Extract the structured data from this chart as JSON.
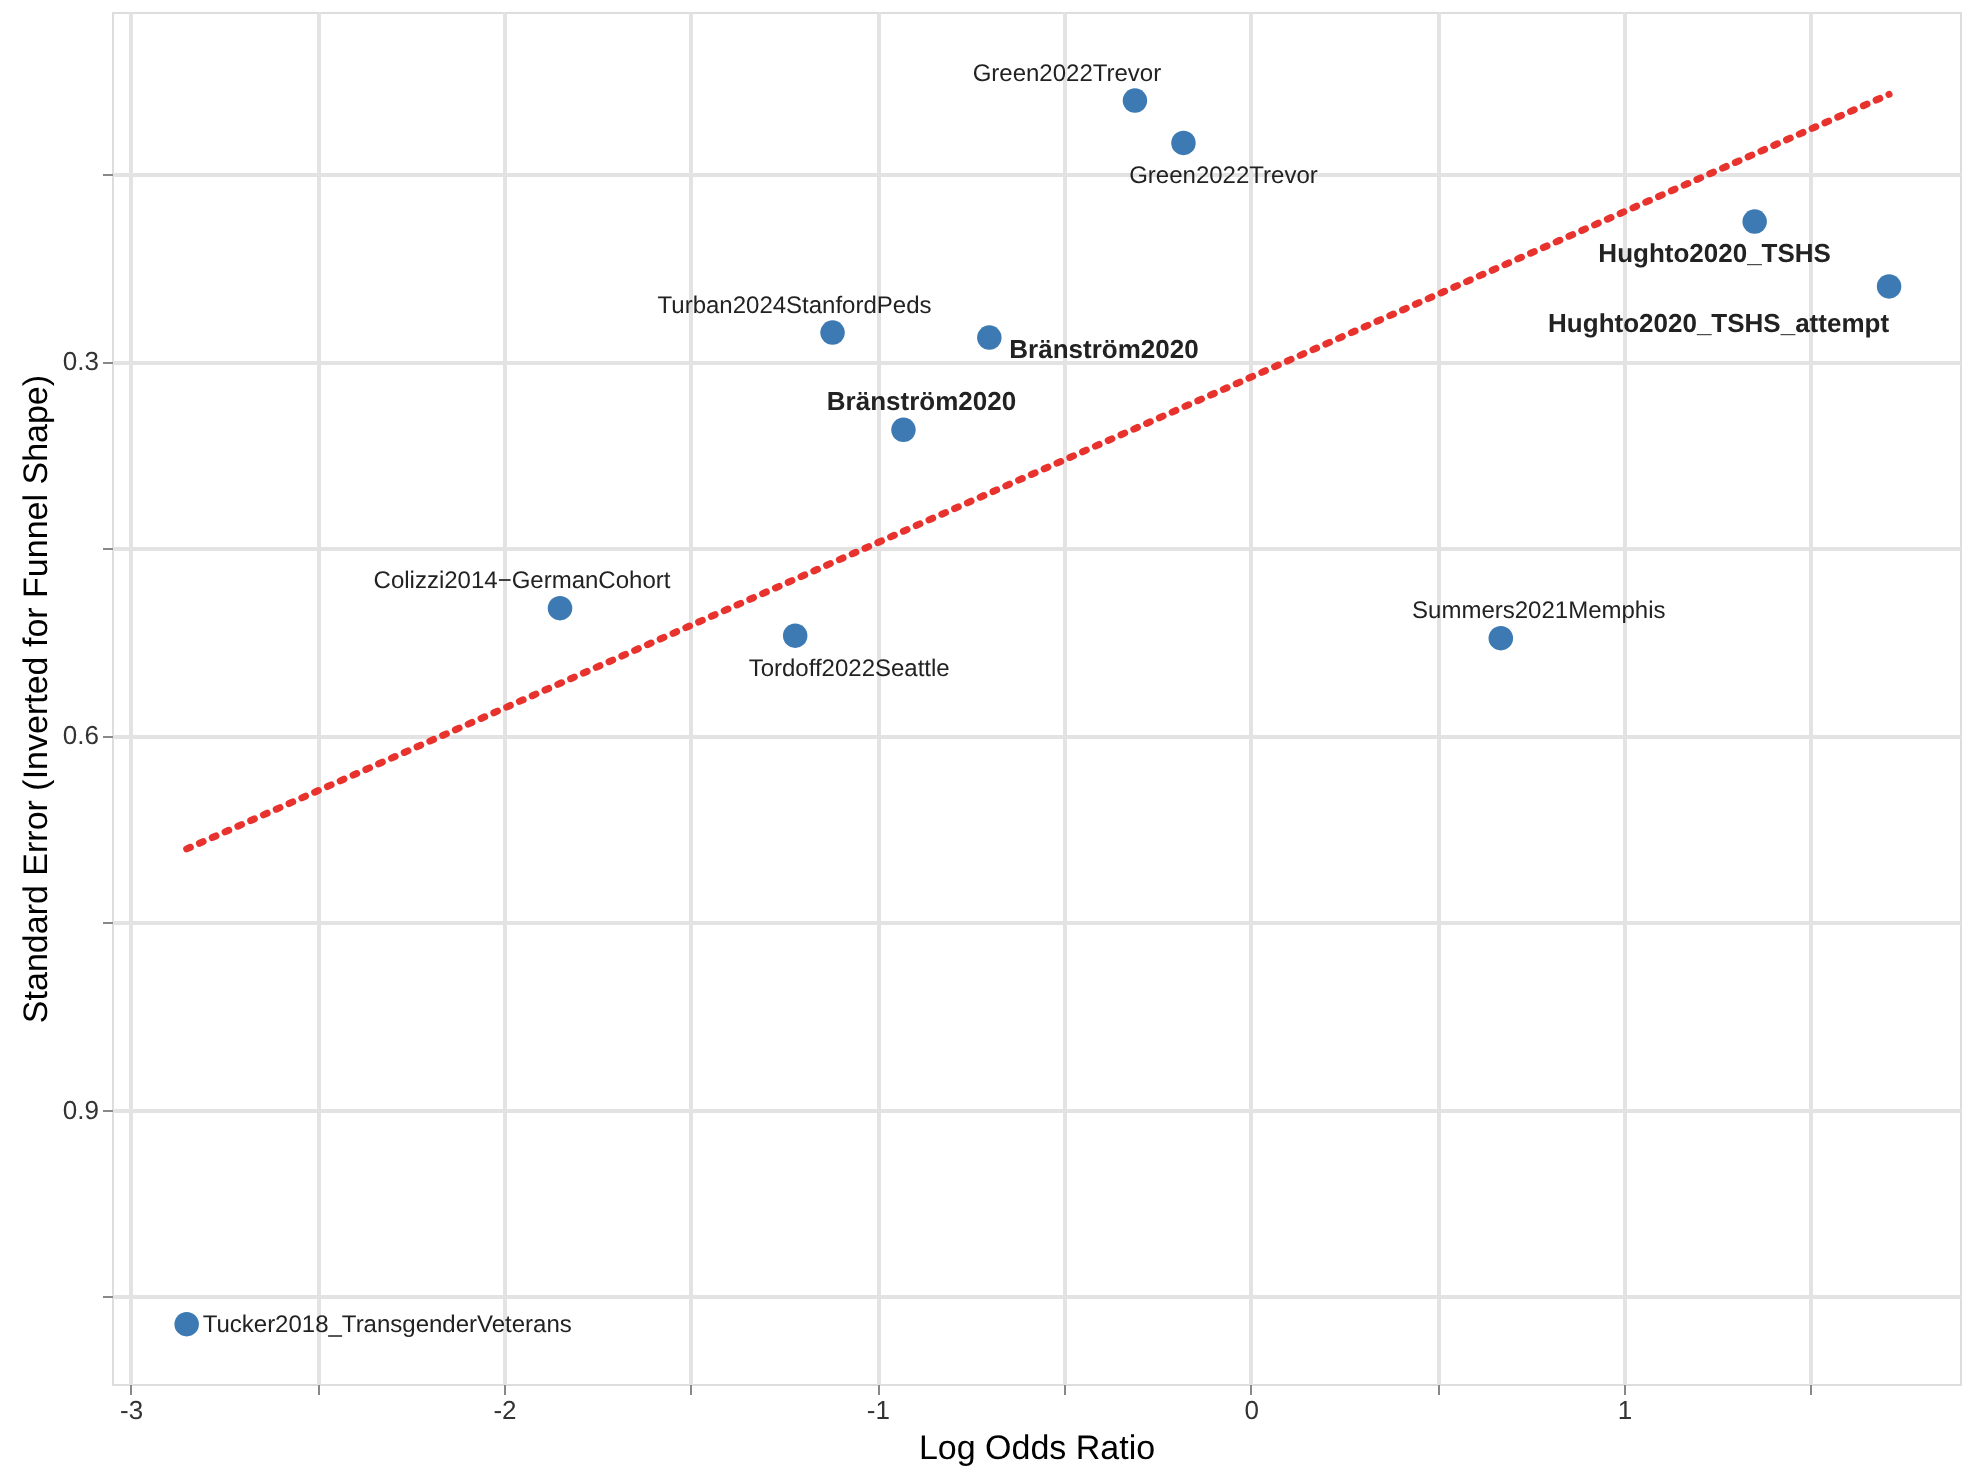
{
  "chart_data": {
    "type": "scatter",
    "xlabel": "Log Odds Ratio",
    "ylabel": "Standard Error (Inverted for Funnel Shape)",
    "xlim": [
      -3.05,
      1.9
    ],
    "ylim": [
      1.12,
      0.02
    ],
    "xticks": [
      -3,
      {
        "value": -2.5,
        "label": null
      },
      -2,
      {
        "value": -1.5,
        "label": null
      },
      -1,
      {
        "value": -0.5,
        "label": null
      },
      0,
      {
        "value": 0.5,
        "label": null
      },
      1,
      {
        "value": 1.5,
        "label": null
      }
    ],
    "yticks": [
      {
        "value": 0.15,
        "label": null
      },
      0.3,
      {
        "value": 0.45,
        "label": null
      },
      0.6,
      {
        "value": 0.75,
        "label": null
      },
      0.9,
      {
        "value": 1.05,
        "label": null
      }
    ],
    "grid": true,
    "marker": "circle",
    "series": [
      {
        "color": "#3d7ab3",
        "x": [
          -0.31,
          -0.18,
          1.35,
          1.71,
          -1.12,
          -0.7,
          -0.93,
          -1.85,
          -1.22,
          0.67,
          -2.85
        ],
        "values": [
          0.091,
          0.125,
          0.188,
          0.24,
          0.277,
          0.281,
          0.355,
          0.498,
          0.52,
          0.522,
          1.072
        ],
        "value_labels": [
          "Green2022Trevor",
          "Green2022Trevor",
          "Hughto2020_TSHS",
          "Hughto2020_TSHS_attempt",
          "Turban2024StanfordPeds",
          "Bränström2020",
          "Bränström2020",
          "Colizzi2014−GermanCohort",
          "Tordoff2022Seattle",
          "Summers2021Memphis",
          "Tucker2018_TransgenderVeterans"
        ]
      },
      {
        "type": "line",
        "color": "#e8322d",
        "line_style": "dotted",
        "marker": "none",
        "x": [
          -2.85,
          1.71
        ],
        "values": [
          0.691,
          0.086
        ]
      }
    ]
  }
}
